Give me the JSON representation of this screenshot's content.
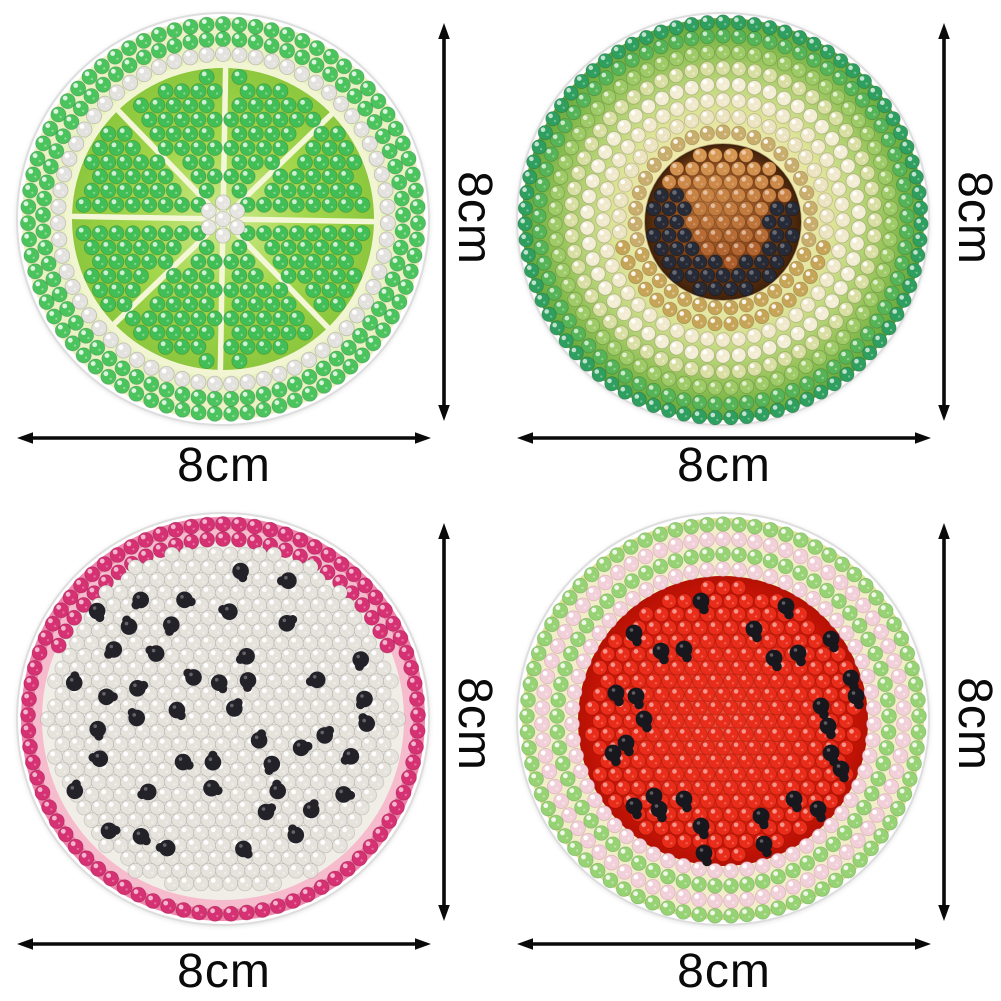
{
  "page": {
    "background": "#ffffff"
  },
  "dimension_style": {
    "line_color": "#0a0a0a",
    "label_color": "#0a0a0a"
  },
  "products": [
    {
      "id": "lime-slice-coaster",
      "width_label": "8cm",
      "height_label": "8cm",
      "design": {
        "type": "lime",
        "colors": {
          "base": "#ffffff",
          "baseEdge": "#dedede",
          "rimBg": "#e8f2c2",
          "rimDot": "#4cc45e",
          "whiteDot": "#e3e2de",
          "pith": "#f2f5d2",
          "wedgeBg1": "#cfe98f",
          "wedgeBg2": "#a4d74c",
          "wedgeBg3": "#8cc73d",
          "wedgeDot": "#41be55",
          "separator": "#f3f7d8",
          "centerDot": "#e6e5e1"
        }
      }
    },
    {
      "id": "avocado-coaster",
      "width_label": "8cm",
      "height_label": "8cm",
      "design": {
        "type": "avocado",
        "colors": {
          "base": "#ffffff",
          "baseEdge": "#dedede",
          "bgStops": [
            "#f3ecb6",
            "#efe9ac",
            "#dde397",
            "#b6d376",
            "#8fc054",
            "#61a93c"
          ],
          "ringColors": [
            "#c9ad6c",
            "#ece3c1",
            "#f0e9cb",
            "#f2edd3",
            "#d9dfa3",
            "#9ecb67",
            "#55b457",
            "#2f9f60"
          ],
          "goldDot": "#c7a558",
          "pitStops": [
            "#c07e41",
            "#8a4a1e",
            "#40210a"
          ],
          "pitCopperTop": "#d89a55",
          "pitCopperBottom": "#a24e20",
          "pitNavy": "#272b37"
        }
      }
    },
    {
      "id": "dragon-fruit-coaster",
      "width_label": "8cm",
      "height_label": "8cm",
      "design": {
        "type": "dragonfruit",
        "seed_count": 46,
        "rng_seed": 11,
        "colors": {
          "base": "#ffffff",
          "baseEdge": "#dedede",
          "rimBgOuter": "#ee85ab",
          "rimBgInner": "#f6bccd",
          "rimDot": "#d63173",
          "fleshBg": "#f1eee8",
          "fleshDot": "#e6e3dd",
          "seed": "#232229"
        }
      }
    },
    {
      "id": "watermelon-coaster",
      "width_label": "8cm",
      "height_label": "8cm",
      "design": {
        "type": "watermelon",
        "colors": {
          "base": "#ffffff",
          "baseEdge": "#dedede",
          "rimEdge": "#dce398",
          "rimBg": "#f2eeca",
          "ringGreen": "#97d275",
          "ringPink": "#f2d0d9",
          "fleshStops": [
            "#f2503a",
            "#e62c19",
            "#cb1506",
            "#b51105"
          ],
          "fleshDot": "#e92d1a",
          "seed": "#17171d"
        },
        "seeds": [
          [
            -89,
            -88
          ],
          [
            -62,
            -70
          ],
          [
            -39,
            -72
          ],
          [
            -22,
            -120
          ],
          [
            63,
            -115
          ],
          [
            31,
            -92
          ],
          [
            51,
            -63
          ],
          [
            75,
            -68
          ],
          [
            108,
            -82
          ],
          [
            128,
            -43
          ],
          [
            133,
            -25
          ],
          [
            98,
            -15
          ],
          [
            105,
            5
          ],
          [
            108,
            32
          ],
          [
            118,
            48
          ],
          [
            -107,
            -28
          ],
          [
            -87,
            -25
          ],
          [
            -79,
            -2
          ],
          [
            -97,
            22
          ],
          [
            -110,
            32
          ],
          [
            -69,
            75
          ],
          [
            -64,
            88
          ],
          [
            -39,
            78
          ],
          [
            -89,
            85
          ],
          [
            -22,
            105
          ],
          [
            -19,
            132
          ],
          [
            38,
            95
          ],
          [
            41,
            123
          ],
          [
            71,
            78
          ],
          [
            95,
            88
          ]
        ]
      }
    }
  ]
}
